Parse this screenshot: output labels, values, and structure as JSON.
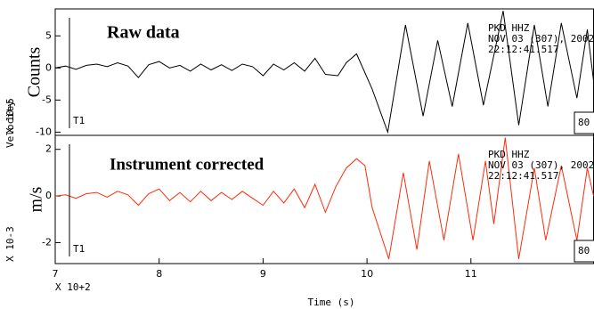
{
  "chart_data": [
    {
      "type": "line",
      "title": "Raw data",
      "y_label": "Counts",
      "unit_label": "Velocity",
      "scale_label": "X 10+5",
      "station": "PKD HHZ",
      "date": "NOV 03 (307), 2002",
      "time": "22:12:41.517",
      "trace_label": "T1",
      "box_label": "80",
      "title_color": "#000000",
      "xlim": [
        7,
        12.18
      ],
      "ylim": [
        -10.5,
        9.2
      ],
      "yticks": [
        5,
        0,
        -5,
        -10
      ],
      "series": [
        {
          "color": "#000000",
          "x": [
            7.0,
            7.1,
            7.2,
            7.3,
            7.4,
            7.5,
            7.6,
            7.7,
            7.8,
            7.9,
            8.0,
            8.1,
            8.2,
            8.3,
            8.4,
            8.5,
            8.6,
            8.7,
            8.8,
            8.9,
            9.0,
            9.1,
            9.2,
            9.3,
            9.4,
            9.5,
            9.6,
            9.72,
            9.8,
            9.9,
            10.05,
            10.2,
            10.37,
            10.54,
            10.68,
            10.82,
            10.97,
            11.12,
            11.31,
            11.46,
            11.61,
            11.74,
            11.87,
            12.02,
            12.12,
            12.18
          ],
          "values": [
            0,
            0.3,
            -0.2,
            0.4,
            0.6,
            0.2,
            0.8,
            0.3,
            -1.5,
            0.5,
            1.0,
            0,
            0.4,
            -0.5,
            0.6,
            -0.3,
            0.5,
            -0.4,
            0.6,
            0.2,
            -1.2,
            0.6,
            -0.3,
            0.8,
            -0.5,
            1.5,
            -1,
            -1.2,
            0.8,
            2.2,
            -3.3,
            -10,
            6.7,
            -7.5,
            4.3,
            -6,
            7,
            -5.8,
            8.9,
            -8.9,
            6.7,
            -6,
            7,
            -4.7,
            6,
            -2
          ]
        }
      ]
    },
    {
      "type": "line",
      "title": "Instrument corrected",
      "y_label": "m/s",
      "scale_label": "X 10-3",
      "station": "PKD HHZ",
      "date": "NOV 03 (307), 2002",
      "time": "22:12:41.517",
      "trace_label": "T1",
      "box_label": "80",
      "title_color": "#cc4a0a",
      "x_label": "Time (s)",
      "x_scale_label": "X 10+2",
      "xlim": [
        7,
        12.18
      ],
      "xticks": [
        7,
        8,
        9,
        10,
        11
      ],
      "ylim": [
        -2.9,
        2.6
      ],
      "yticks": [
        2,
        0,
        -2
      ],
      "series": [
        {
          "color": "#ff2a0a",
          "x": [
            7.0,
            7.1,
            7.2,
            7.3,
            7.4,
            7.5,
            7.6,
            7.7,
            7.8,
            7.9,
            8.0,
            8.1,
            8.2,
            8.3,
            8.4,
            8.5,
            8.6,
            8.7,
            8.8,
            8.9,
            9.0,
            9.1,
            9.2,
            9.3,
            9.4,
            9.5,
            9.6,
            9.7,
            9.8,
            9.9,
            9.98,
            10.05,
            10.21,
            10.35,
            10.48,
            10.6,
            10.74,
            10.88,
            11.02,
            11.14,
            11.22,
            11.33,
            11.46,
            11.61,
            11.72,
            11.87,
            12.02,
            12.12,
            12.18
          ],
          "values": [
            0,
            0.05,
            -0.1,
            0.1,
            0.15,
            -0.05,
            0.2,
            0.05,
            -0.4,
            0.1,
            0.3,
            -0.2,
            0.15,
            -0.25,
            0.2,
            -0.2,
            0.15,
            -0.15,
            0.2,
            -0.1,
            -0.4,
            0.2,
            -0.3,
            0.3,
            -0.5,
            0.5,
            -0.7,
            0.4,
            1.2,
            1.6,
            1.3,
            -0.5,
            -2.7,
            1.0,
            -2.3,
            1.5,
            -1.9,
            1.8,
            -1.9,
            1.5,
            -1.2,
            2.5,
            -2.7,
            1.2,
            -1.9,
            1.3,
            -1.9,
            1.2,
            0
          ]
        }
      ]
    }
  ]
}
